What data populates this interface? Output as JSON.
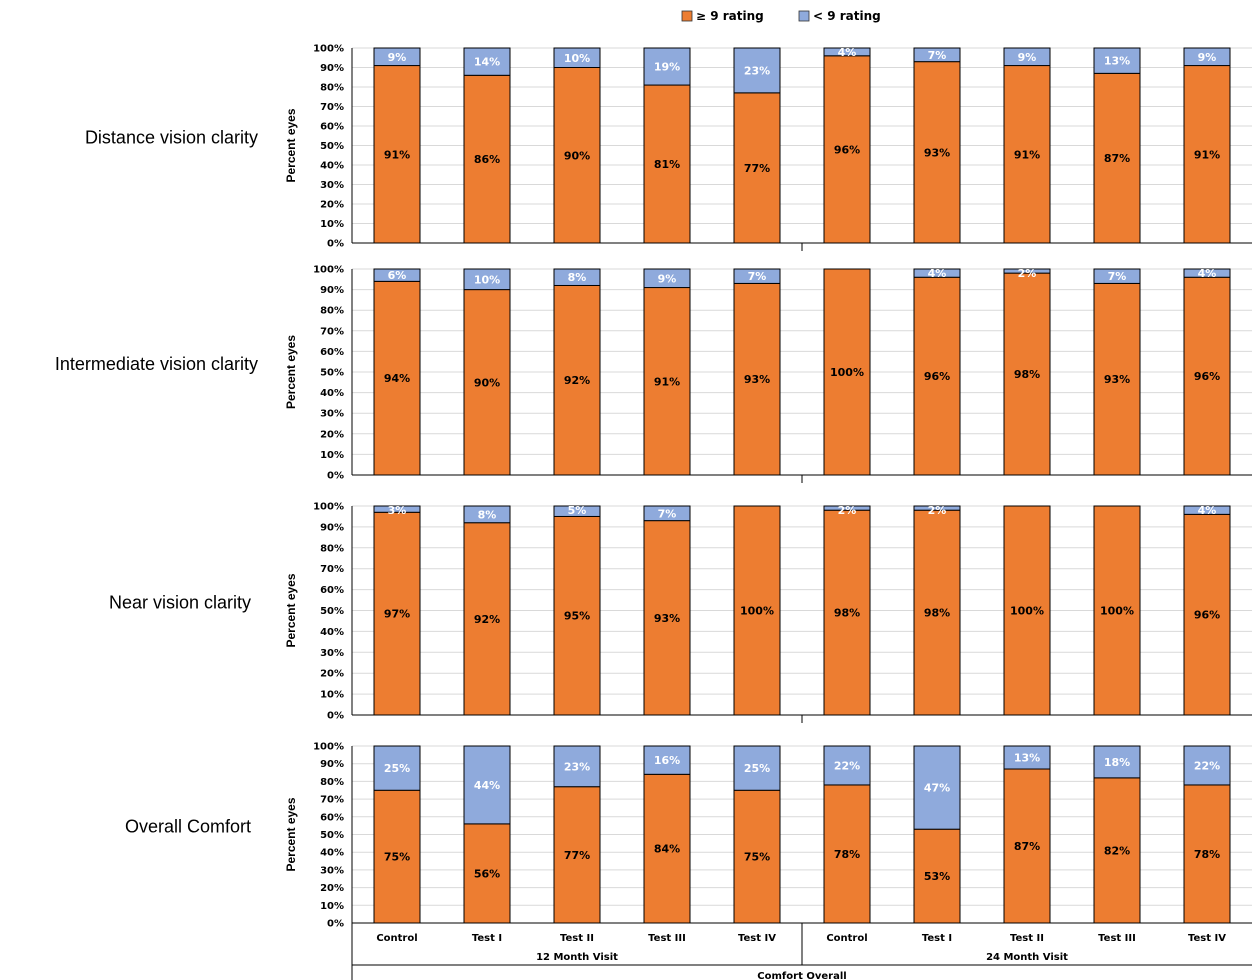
{
  "chart_data": {
    "type": "bar",
    "stacked": true,
    "legend": {
      "placement": "top-center",
      "entries": [
        {
          "name": "≥ 9 rating",
          "color": "#ED7D31"
        },
        {
          "name": "< 9 rating",
          "color": "#8FAADC"
        }
      ]
    },
    "colors": {
      "high": "#ED7D31",
      "low": "#8FAADC"
    },
    "ylabel": "Percent eyes",
    "ylim": [
      0,
      100
    ],
    "yticks": [
      "0%",
      "10%",
      "20%",
      "30%",
      "40%",
      "50%",
      "60%",
      "70%",
      "80%",
      "90%",
      "100%"
    ],
    "categories": [
      "Control",
      "Test I",
      "Test II",
      "Test III",
      "Test IV",
      "Control",
      "Test I",
      "Test II",
      "Test III",
      "Test IV"
    ],
    "groups": [
      {
        "label": "12 Month Visit",
        "span": 5
      },
      {
        "label": "24 Month Visit",
        "span": 5
      }
    ],
    "xlabel": "Comfort Overall",
    "panels": [
      {
        "row_label": "Distance vision clarity",
        "series": [
          {
            "name": "≥ 9 rating",
            "values": [
              91,
              86,
              90,
              81,
              77,
              96,
              93,
              91,
              87,
              91
            ],
            "labels": [
              "91%",
              "86%",
              "90%",
              "81%",
              "77%",
              "96%",
              "93%",
              "91%",
              "87%",
              "91%"
            ]
          },
          {
            "name": "< 9 rating",
            "values": [
              9,
              14,
              10,
              19,
              23,
              4,
              7,
              9,
              13,
              9
            ],
            "labels": [
              "9%",
              "14%",
              "10%",
              "19%",
              "23%",
              "4%",
              "7%",
              "9%",
              "13%",
              "9%"
            ]
          }
        ]
      },
      {
        "row_label": "Intermediate vision clarity",
        "series": [
          {
            "name": "≥ 9 rating",
            "values": [
              94,
              90,
              92,
              91,
              93,
              100,
              96,
              98,
              93,
              96
            ],
            "labels": [
              "94%",
              "90%",
              "92%",
              "91%",
              "93%",
              "100%",
              "96%",
              "98%",
              "93%",
              "96%"
            ]
          },
          {
            "name": "< 9 rating",
            "values": [
              6,
              10,
              8,
              9,
              7,
              0,
              4,
              2,
              7,
              4
            ],
            "labels": [
              "6%",
              "10%",
              "8%",
              "9%",
              "7%",
              "",
              "4%",
              "2%",
              "7%",
              "4%"
            ]
          }
        ]
      },
      {
        "row_label": "Near vision clarity",
        "series": [
          {
            "name": "≥ 9 rating",
            "values": [
              97,
              92,
              95,
              93,
              100,
              98,
              98,
              100,
              100,
              96
            ],
            "labels": [
              "97%",
              "92%",
              "95%",
              "93%",
              "100%",
              "98%",
              "98%",
              "100%",
              "100%",
              "96%"
            ]
          },
          {
            "name": "< 9 rating",
            "values": [
              3,
              8,
              5,
              7,
              0,
              2,
              2,
              0,
              0,
              4
            ],
            "labels": [
              "3%",
              "8%",
              "5%",
              "7%",
              "",
              "2%",
              "2%",
              "",
              "",
              "4%"
            ]
          }
        ]
      },
      {
        "row_label": "Overall Comfort",
        "series": [
          {
            "name": "≥ 9 rating",
            "values": [
              75,
              56,
              77,
              84,
              75,
              78,
              53,
              87,
              82,
              78
            ],
            "labels": [
              "75%",
              "56%",
              "77%",
              "84%",
              "75%",
              "78%",
              "53%",
              "87%",
              "82%",
              "78%"
            ]
          },
          {
            "name": "< 9 rating",
            "values": [
              25,
              44,
              23,
              16,
              25,
              22,
              47,
              13,
              18,
              22
            ],
            "labels": [
              "25%",
              "44%",
              "23%",
              "16%",
              "25%",
              "22%",
              "47%",
              "13%",
              "18%",
              "22%"
            ]
          }
        ]
      }
    ]
  }
}
